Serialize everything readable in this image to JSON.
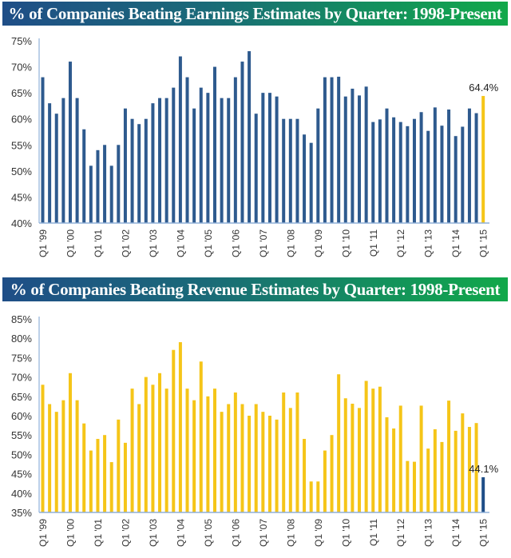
{
  "chart_data": [
    {
      "type": "bar",
      "title": "% of Companies Beating Earnings Estimates by Quarter: 1998-Present",
      "xlabel": "",
      "ylabel": "",
      "ylim": [
        40,
        75
      ],
      "yticks": [
        "40%",
        "45%",
        "50%",
        "55%",
        "60%",
        "65%",
        "70%",
        "75%"
      ],
      "ytick_values": [
        40,
        45,
        50,
        55,
        60,
        65,
        70,
        75
      ],
      "xtick_labels": [
        "Q1 '99",
        "Q1 '00",
        "Q1 '01",
        "Q1 '02",
        "Q1 '03",
        "Q1 '04",
        "Q1 '05",
        "Q1 '06",
        "Q1 '07",
        "Q1 '08",
        "Q1 '09",
        "Q1 '10",
        "Q1 '11",
        "Q1 '12",
        "Q1 '13",
        "Q1 '14",
        "Q1 '15"
      ],
      "grid": false,
      "bar_color": "#2e5a8e",
      "highlight_color": "#f5c518",
      "highlight_index": 64,
      "data_label": "64.4%",
      "values": [
        68,
        63,
        61,
        64,
        71,
        64,
        58,
        51,
        54,
        55,
        51,
        55,
        62,
        60,
        59,
        60,
        63,
        64,
        64,
        66,
        72,
        68,
        62,
        66,
        65,
        70,
        64,
        64,
        68,
        71,
        73,
        61,
        65,
        65,
        64.3,
        60,
        60,
        60,
        57,
        55.4,
        62,
        68,
        68,
        68.1,
        64.3,
        65.8,
        64.5,
        66.2,
        59.4,
        59.9,
        62,
        60.3,
        59.4,
        58.6,
        60,
        61.3,
        57.7,
        62.2,
        58.7,
        61.8,
        56.7,
        58.5,
        62,
        61.1,
        64.4
      ]
    },
    {
      "type": "bar",
      "title": "% of Companies Beating Revenue Estimates by Quarter: 1998-Present",
      "xlabel": "",
      "ylabel": "",
      "ylim": [
        35,
        85
      ],
      "yticks": [
        "35%",
        "40%",
        "45%",
        "50%",
        "55%",
        "60%",
        "65%",
        "70%",
        "75%",
        "80%",
        "85%"
      ],
      "ytick_values": [
        35,
        40,
        45,
        50,
        55,
        60,
        65,
        70,
        75,
        80,
        85
      ],
      "xtick_labels": [
        "Q1 '99",
        "Q1 '00",
        "Q1 '01",
        "Q1 '02",
        "Q1 '03",
        "Q1 '04",
        "Q1 '05",
        "Q1 '06",
        "Q1 '07",
        "Q1 '08",
        "Q1 '09",
        "Q1 '10",
        "Q1 '11",
        "Q1 '12",
        "Q1 '13",
        "Q1 '14",
        "Q1 '15"
      ],
      "grid": false,
      "bar_color": "#f5c518",
      "highlight_color": "#1f4e87",
      "highlight_index": 64,
      "data_label": "44.1%",
      "values": [
        68,
        63,
        61,
        64,
        71,
        64,
        58,
        51,
        54,
        55,
        48,
        59,
        53,
        67,
        63,
        70,
        68,
        71,
        67,
        77,
        79,
        67,
        64,
        74,
        65,
        67,
        61,
        63,
        66,
        63,
        60,
        63,
        61,
        60,
        59,
        66,
        62,
        66,
        54,
        43,
        43,
        51,
        55,
        70.7,
        64.5,
        63.1,
        62,
        69,
        67,
        67.5,
        59.6,
        56.7,
        62.6,
        48.3,
        48.1,
        62.6,
        51.5,
        56.5,
        53.2,
        63.9,
        56.1,
        60.6,
        57.1,
        58.1,
        44.1
      ]
    }
  ]
}
